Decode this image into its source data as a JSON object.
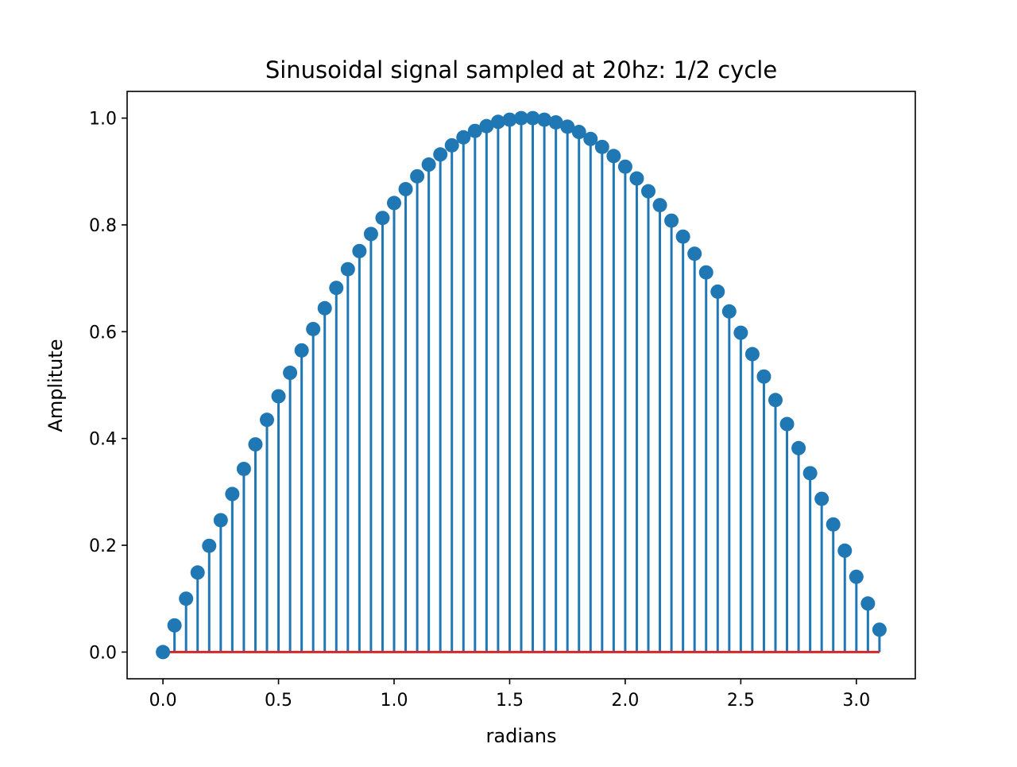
{
  "chart_data": {
    "type": "stem",
    "title": "Sinusoidal signal sampled at 20hz: 1/2 cycle",
    "xlabel": "radians",
    "ylabel": "Amplitute",
    "xlim": [
      -0.155,
      3.255
    ],
    "ylim": [
      -0.05,
      1.05
    ],
    "xticks": [
      "0.0",
      "0.5",
      "1.0",
      "1.5",
      "2.0",
      "2.5",
      "3.0"
    ],
    "yticks": [
      "0.0",
      "0.2",
      "0.4",
      "0.6",
      "0.8",
      "1.0"
    ],
    "grid": false,
    "series": [
      {
        "marker_color": "#1f77b4",
        "baseline_color": "#d62728",
        "baseline": 0,
        "x": [
          0.0,
          0.05,
          0.1,
          0.15,
          0.2,
          0.25,
          0.3,
          0.35,
          0.4,
          0.45,
          0.5,
          0.55,
          0.6,
          0.65,
          0.7,
          0.75,
          0.8,
          0.85,
          0.9,
          0.95,
          1.0,
          1.05,
          1.1,
          1.15,
          1.2,
          1.25,
          1.3,
          1.35,
          1.4,
          1.45,
          1.5,
          1.55,
          1.6,
          1.65,
          1.7,
          1.75,
          1.8,
          1.85,
          1.9,
          1.95,
          2.0,
          2.05,
          2.1,
          2.15,
          2.2,
          2.25,
          2.3,
          2.35,
          2.4,
          2.45,
          2.5,
          2.55,
          2.6,
          2.65,
          2.7,
          2.75,
          2.8,
          2.85,
          2.9,
          2.95,
          3.0,
          3.05,
          3.1
        ],
        "y": [
          0.0,
          0.05,
          0.1,
          0.149,
          0.199,
          0.247,
          0.296,
          0.343,
          0.389,
          0.435,
          0.479,
          0.523,
          0.565,
          0.605,
          0.644,
          0.682,
          0.717,
          0.751,
          0.783,
          0.813,
          0.841,
          0.867,
          0.891,
          0.913,
          0.932,
          0.949,
          0.964,
          0.976,
          0.985,
          0.993,
          0.997,
          1.0,
          1.0,
          0.997,
          0.992,
          0.984,
          0.974,
          0.961,
          0.946,
          0.929,
          0.909,
          0.887,
          0.863,
          0.837,
          0.808,
          0.778,
          0.746,
          0.711,
          0.675,
          0.638,
          0.598,
          0.558,
          0.516,
          0.472,
          0.427,
          0.382,
          0.335,
          0.287,
          0.239,
          0.19,
          0.141,
          0.091,
          0.042
        ]
      }
    ]
  }
}
